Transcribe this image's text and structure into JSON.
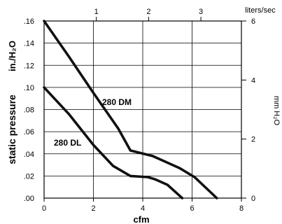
{
  "chart_data": {
    "type": "line",
    "x_axis_bottom": {
      "label": "cfm",
      "ticks": [
        "0",
        "2",
        "4",
        "6",
        "8"
      ],
      "range": [
        0,
        8
      ]
    },
    "x_axis_top": {
      "label": "liters/sec",
      "ticks": [
        "1",
        "2",
        "3"
      ],
      "values": [
        1,
        2,
        3
      ]
    },
    "y_axis_left": {
      "label": "static pressure",
      "unit_label": "in./H₂O",
      "ticks": [
        ".00",
        ".02",
        ".04",
        ".06",
        ".08",
        ".10",
        ".12",
        ".14",
        ".16"
      ],
      "range": [
        0,
        0.16
      ]
    },
    "y_axis_right": {
      "label": "mm H₂O",
      "ticks": [
        "0",
        "2",
        "4",
        "6"
      ],
      "range": [
        0,
        6
      ]
    },
    "grid": true,
    "series": [
      {
        "name": "280 DM",
        "points": [
          [
            0,
            0.16
          ],
          [
            1,
            0.128
          ],
          [
            2,
            0.095
          ],
          [
            3,
            0.063
          ],
          [
            3.5,
            0.043
          ],
          [
            4.4,
            0.038
          ],
          [
            5,
            0.032
          ],
          [
            5.5,
            0.027
          ],
          [
            6.1,
            0.019
          ],
          [
            7,
            0.0
          ]
        ]
      },
      {
        "name": "280 DL",
        "points": [
          [
            0,
            0.1
          ],
          [
            1,
            0.076
          ],
          [
            2,
            0.048
          ],
          [
            2.8,
            0.029
          ],
          [
            3.5,
            0.02
          ],
          [
            4.2,
            0.019
          ],
          [
            4.5,
            0.017
          ],
          [
            5.0,
            0.012
          ],
          [
            5.6,
            0.0
          ]
        ]
      }
    ]
  }
}
